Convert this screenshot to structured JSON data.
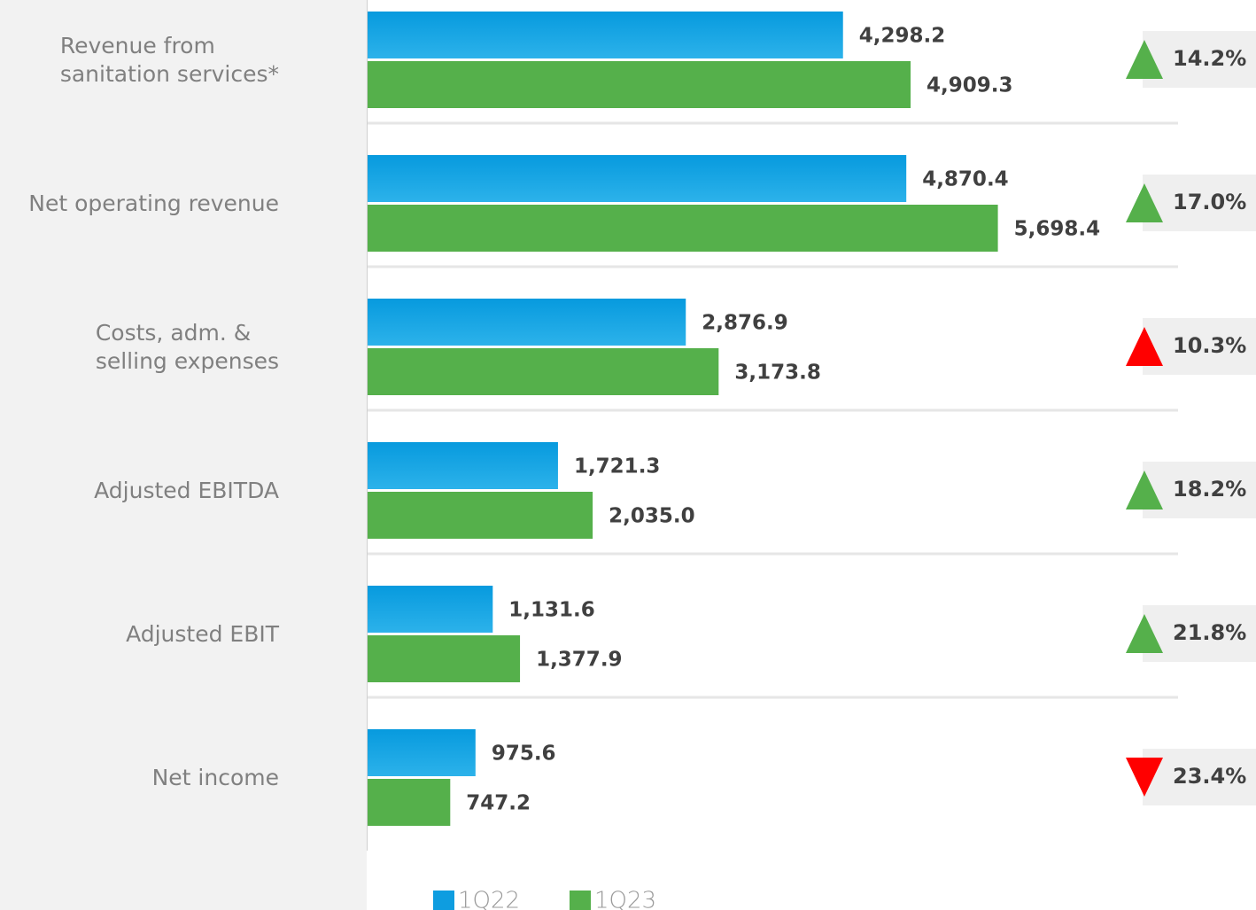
{
  "chart_data": {
    "type": "bar",
    "orientation": "horizontal",
    "categories": [
      "Revenue from\nsanitation services*",
      "Net operating revenue",
      "Costs, adm. &\nselling expenses",
      "Adjusted EBITDA",
      "Adjusted EBIT",
      "Net income"
    ],
    "series": [
      {
        "name": "1Q22",
        "color": "#0e9de0",
        "values": [
          4298.2,
          4870.4,
          2876.9,
          1721.3,
          1131.6,
          975.6
        ],
        "value_labels": [
          "4,298.2",
          "4,870.4",
          "2,876.9",
          "1,721.3",
          "1,131.6",
          "975.6"
        ]
      },
      {
        "name": "1Q23",
        "color": "#55b04b",
        "values": [
          4909.3,
          5698.4,
          3173.8,
          2035.0,
          1377.9,
          747.2
        ],
        "value_labels": [
          "4,909.3",
          "5,698.4",
          "3,173.8",
          "2,035.0",
          "1,377.9",
          "747.2"
        ]
      }
    ],
    "changes": {
      "values": [
        14.2,
        17.0,
        10.3,
        18.2,
        21.8,
        23.4
      ],
      "value_labels": [
        "14.2%",
        "17.0%",
        "10.3%",
        "18.2%",
        "21.8%",
        "23.4%"
      ],
      "directions": [
        "up",
        "up",
        "up",
        "up",
        "up",
        "down"
      ],
      "colors": [
        "#55b04b",
        "#55b04b",
        "#ff0000",
        "#55b04b",
        "#55b04b",
        "#ff0000"
      ]
    },
    "xlim": [
      0,
      8000
    ]
  }
}
